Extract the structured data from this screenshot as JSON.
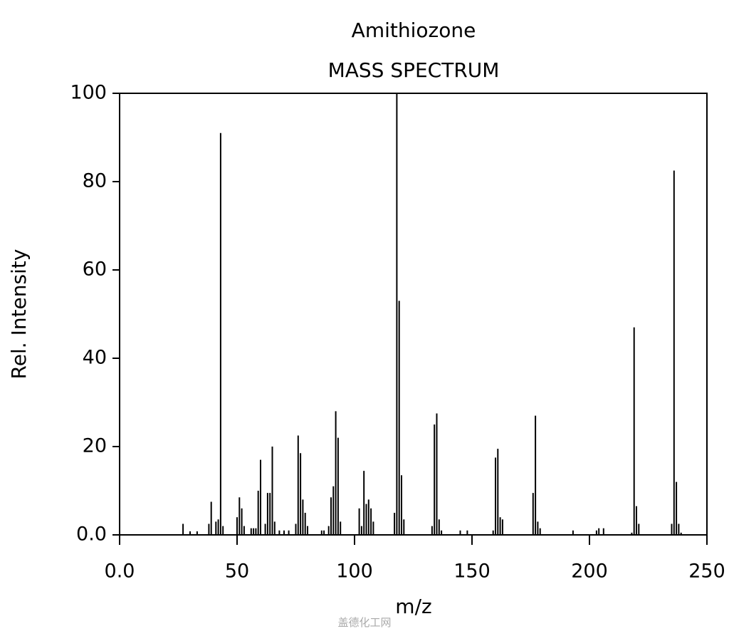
{
  "chart_data": {
    "type": "stem",
    "title": "Amithiozone",
    "subtitle": "MASS SPECTRUM",
    "x_label": "m/z",
    "y_label": "Rel. Intensity",
    "watermark": "盖德化工网",
    "color": "#000000",
    "x": [
      27,
      30,
      33,
      38,
      39,
      41,
      42,
      43,
      44,
      50,
      51,
      52,
      53,
      56,
      57,
      58,
      59,
      60,
      62,
      63,
      64,
      65,
      66,
      68,
      70,
      72,
      75,
      76,
      77,
      78,
      79,
      80,
      86,
      87,
      89,
      90,
      91,
      92,
      93,
      94,
      102,
      103,
      104,
      105,
      106,
      107,
      108,
      117,
      118,
      119,
      120,
      121,
      133,
      134,
      135,
      136,
      137,
      145,
      148,
      159,
      160,
      161,
      162,
      163,
      176,
      177,
      178,
      179,
      193,
      203,
      204,
      206,
      218,
      219,
      220,
      221,
      235,
      236,
      237,
      238,
      239
    ],
    "values": [
      2.5,
      0.8,
      0.8,
      2.5,
      7.5,
      3,
      3.5,
      91,
      2,
      4,
      8.5,
      6,
      2,
      1.5,
      1.5,
      1.5,
      10,
      17,
      2.5,
      9.5,
      9.5,
      20,
      3,
      1,
      1,
      1,
      2.5,
      22.5,
      18.5,
      8,
      5,
      2,
      1,
      1,
      2,
      8.5,
      11,
      28,
      22,
      3,
      6,
      2,
      14.5,
      7,
      8,
      6,
      3,
      5,
      100,
      53,
      13.5,
      3.5,
      2,
      25,
      27.5,
      3.5,
      1,
      1,
      1,
      1,
      17.5,
      19.5,
      4,
      3.5,
      9.5,
      27,
      3,
      1.5,
      1,
      1,
      1.5,
      1.5,
      0.5,
      47,
      6.5,
      2.5,
      2.5,
      82.5,
      12,
      2.5,
      0.5
    ],
    "xlim": [
      0,
      250
    ],
    "ylim": [
      0,
      100
    ],
    "xticks": [
      {
        "value": 0,
        "label": "0.0"
      },
      50,
      100,
      150,
      200,
      250
    ],
    "yticks": [
      {
        "value": 0,
        "label": "0.0"
      },
      20,
      40,
      60,
      80,
      100
    ]
  }
}
